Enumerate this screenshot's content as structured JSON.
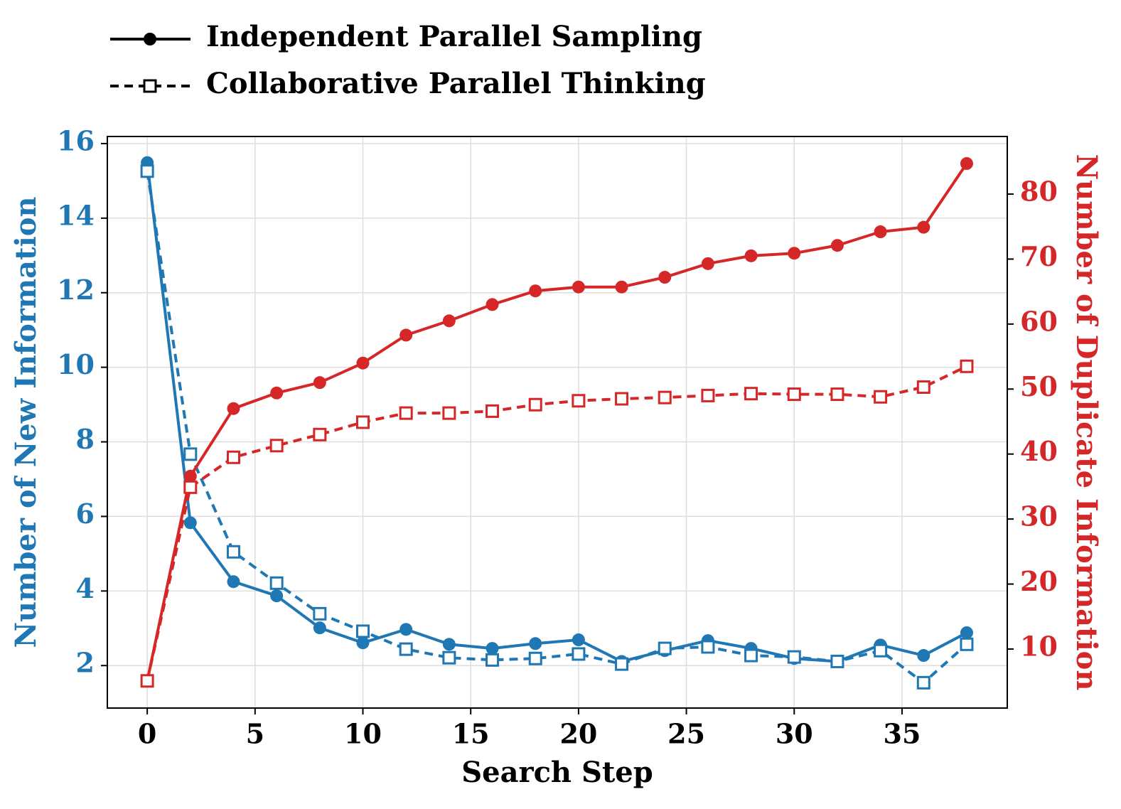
{
  "chart_data": {
    "type": "line",
    "x_label": "Search Step",
    "y_label": "Number of New Information",
    "y2_label": "Number of Duplicate Information",
    "x": [
      0,
      2,
      4,
      6,
      8,
      10,
      12,
      14,
      16,
      18,
      20,
      22,
      24,
      26,
      28,
      30,
      32,
      34,
      36,
      38
    ],
    "xlim": [
      -1.85,
      39.88
    ],
    "xticks": [
      0,
      5,
      10,
      15,
      20,
      25,
      30,
      35
    ],
    "ylim": [
      0.86,
      16.19
    ],
    "yticks": [
      2,
      4,
      6,
      8,
      10,
      12,
      14,
      16
    ],
    "y2lim": [
      0.92,
      88.86
    ],
    "y2ticks": [
      10,
      20,
      30,
      40,
      50,
      60,
      70,
      80
    ],
    "y_color": "#1f77b4",
    "y2_color": "#d62728",
    "grid": true,
    "legend_position": "top",
    "legend": [
      {
        "name": "Independent Parallel Sampling",
        "style": "solid",
        "marker": "circle",
        "color": "#000000"
      },
      {
        "name": "Collaborative Parallel Thinking",
        "style": "dashed",
        "marker": "square",
        "color": "#000000"
      }
    ],
    "series": [
      {
        "color": "#1f77b4",
        "axis": "y",
        "style": "solid",
        "marker": "circle",
        "values": [
          15.49,
          5.83,
          4.25,
          3.87,
          3.01,
          2.61,
          2.97,
          2.57,
          2.46,
          2.59,
          2.69,
          2.11,
          2.4,
          2.67,
          2.46,
          2.19,
          2.11,
          2.55,
          2.27,
          2.88
        ]
      },
      {
        "color": "#1f77b4",
        "axis": "y",
        "style": "dashed",
        "marker": "square",
        "values": [
          15.26,
          7.67,
          5.05,
          4.21,
          3.39,
          2.92,
          2.44,
          2.21,
          2.15,
          2.19,
          2.31,
          2.04,
          2.46,
          2.5,
          2.27,
          2.23,
          2.11,
          2.4,
          1.54,
          2.57
        ]
      },
      {
        "color": "#d62728",
        "axis": "y2",
        "style": "solid",
        "marker": "circle",
        "values": [
          5.1,
          36.6,
          47.0,
          49.4,
          51.0,
          54.0,
          58.3,
          60.5,
          63.0,
          65.1,
          65.7,
          65.7,
          67.2,
          69.3,
          70.5,
          70.9,
          72.1,
          74.2,
          74.9,
          84.7
        ]
      },
      {
        "color": "#d62728",
        "axis": "y2",
        "style": "dashed",
        "marker": "square",
        "values": [
          5.1,
          34.9,
          39.5,
          41.3,
          43.0,
          44.9,
          46.3,
          46.3,
          46.6,
          47.6,
          48.2,
          48.5,
          48.7,
          49.0,
          49.3,
          49.2,
          49.2,
          48.8,
          50.3,
          53.5
        ]
      }
    ]
  }
}
